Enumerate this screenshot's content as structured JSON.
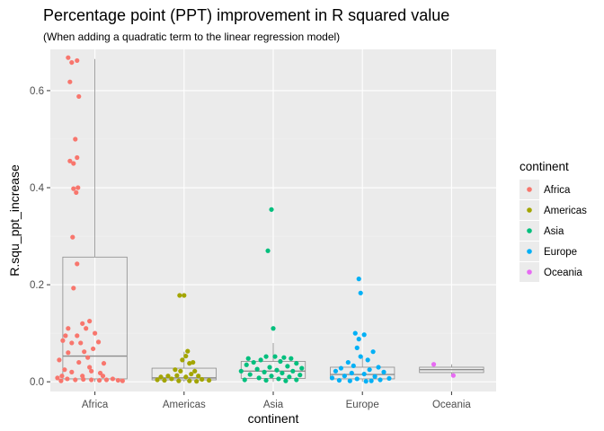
{
  "chart_data": {
    "type": "scatter",
    "title": "Percentage point (PPT) improvement in R squared value",
    "subtitle": "(When adding a quadratic term to the linear regression model)",
    "xlabel": "continent",
    "ylabel": "R.squ_ppt_increase",
    "categories": [
      "Africa",
      "Americas",
      "Asia",
      "Europe",
      "Oceania"
    ],
    "ylim": [
      -0.02,
      0.685
    ],
    "yticks": [
      0.0,
      0.2,
      0.4,
      0.6
    ],
    "ytick_labels": [
      "0.0",
      "0.2",
      "0.4",
      "0.6"
    ],
    "grid": true,
    "legend_position": "right",
    "legend_title": "continent",
    "colors": {
      "Africa": "#F8766D",
      "Americas": "#A3A500",
      "Asia": "#00BF7D",
      "Europe": "#00B0F6",
      "Oceania": "#E76BF3",
      "panel_bg": "#EBEBEB",
      "grid_major": "#FFFFFF",
      "grid_minor": "#F2F2F2",
      "box_line": "#8C8C8C",
      "tick_text": "#4D4D4D"
    },
    "boxes": [
      {
        "category": "Africa",
        "q1": 0.006,
        "median": 0.053,
        "q3": 0.257,
        "whisker_low": 0.0,
        "whisker_high": 0.665
      },
      {
        "category": "Americas",
        "q1": 0.004,
        "median": 0.008,
        "q3": 0.028,
        "whisker_low": 0.0,
        "whisker_high": 0.062
      },
      {
        "category": "Asia",
        "q1": 0.007,
        "median": 0.022,
        "q3": 0.042,
        "whisker_low": 0.0,
        "whisker_high": 0.08
      },
      {
        "category": "Europe",
        "q1": 0.006,
        "median": 0.015,
        "q3": 0.03,
        "whisker_low": 0.0,
        "whisker_high": 0.052
      },
      {
        "category": "Oceania",
        "q1": 0.019,
        "median": 0.025,
        "q3": 0.03,
        "whisker_low": 0.013,
        "whisker_high": 0.036
      }
    ],
    "series": [
      {
        "name": "Africa",
        "category": "Africa",
        "points": [
          {
            "jitter": -0.3,
            "y": 0.668
          },
          {
            "jitter": -0.26,
            "y": 0.658
          },
          {
            "jitter": -0.2,
            "y": 0.662
          },
          {
            "jitter": -0.28,
            "y": 0.618
          },
          {
            "jitter": -0.18,
            "y": 0.588
          },
          {
            "jitter": -0.22,
            "y": 0.5
          },
          {
            "jitter": -0.2,
            "y": 0.462
          },
          {
            "jitter": -0.28,
            "y": 0.455
          },
          {
            "jitter": -0.24,
            "y": 0.45
          },
          {
            "jitter": -0.24,
            "y": 0.398
          },
          {
            "jitter": -0.19,
            "y": 0.4
          },
          {
            "jitter": -0.21,
            "y": 0.39
          },
          {
            "jitter": -0.25,
            "y": 0.298
          },
          {
            "jitter": -0.2,
            "y": 0.243
          },
          {
            "jitter": -0.24,
            "y": 0.193
          },
          {
            "jitter": -0.14,
            "y": 0.12
          },
          {
            "jitter": -0.06,
            "y": 0.125
          },
          {
            "jitter": -0.1,
            "y": 0.11
          },
          {
            "jitter": -0.3,
            "y": 0.11
          },
          {
            "jitter": -0.33,
            "y": 0.095
          },
          {
            "jitter": -0.2,
            "y": 0.095
          },
          {
            "jitter": -0.26,
            "y": 0.08
          },
          {
            "jitter": -0.16,
            "y": 0.08
          },
          {
            "jitter": 0.0,
            "y": 0.1
          },
          {
            "jitter": 0.04,
            "y": 0.082
          },
          {
            "jitter": -0.36,
            "y": 0.085
          },
          {
            "jitter": -0.02,
            "y": 0.068
          },
          {
            "jitter": -0.12,
            "y": 0.062
          },
          {
            "jitter": -0.3,
            "y": 0.06
          },
          {
            "jitter": -0.08,
            "y": 0.05
          },
          {
            "jitter": -0.4,
            "y": 0.045
          },
          {
            "jitter": -0.18,
            "y": 0.04
          },
          {
            "jitter": 0.1,
            "y": 0.038
          },
          {
            "jitter": -0.06,
            "y": 0.03
          },
          {
            "jitter": -0.34,
            "y": 0.025
          },
          {
            "jitter": -0.04,
            "y": 0.022
          },
          {
            "jitter": -0.26,
            "y": 0.02
          },
          {
            "jitter": 0.06,
            "y": 0.018
          },
          {
            "jitter": -0.14,
            "y": 0.012
          },
          {
            "jitter": -0.37,
            "y": 0.012
          },
          {
            "jitter": -0.42,
            "y": 0.008
          },
          {
            "jitter": -0.31,
            "y": 0.006
          },
          {
            "jitter": -0.22,
            "y": 0.004
          },
          {
            "jitter": -0.13,
            "y": 0.005
          },
          {
            "jitter": -0.04,
            "y": 0.004
          },
          {
            "jitter": 0.05,
            "y": 0.003
          },
          {
            "jitter": 0.13,
            "y": 0.004
          },
          {
            "jitter": 0.2,
            "y": 0.006
          },
          {
            "jitter": 0.26,
            "y": 0.003
          },
          {
            "jitter": 0.31,
            "y": 0.002
          },
          {
            "jitter": -0.38,
            "y": 0.002
          },
          {
            "jitter": 0.09,
            "y": 0.012
          }
        ]
      },
      {
        "name": "Americas",
        "category": "Americas",
        "points": [
          {
            "jitter": -0.05,
            "y": 0.178
          },
          {
            "jitter": 0.0,
            "y": 0.178
          },
          {
            "jitter": 0.04,
            "y": 0.063
          },
          {
            "jitter": 0.02,
            "y": 0.053
          },
          {
            "jitter": -0.02,
            "y": 0.045
          },
          {
            "jitter": 0.1,
            "y": 0.04
          },
          {
            "jitter": 0.06,
            "y": 0.038
          },
          {
            "jitter": -0.1,
            "y": 0.025
          },
          {
            "jitter": -0.04,
            "y": 0.022
          },
          {
            "jitter": 0.12,
            "y": 0.022
          },
          {
            "jitter": 0.08,
            "y": 0.016
          },
          {
            "jitter": -0.08,
            "y": 0.013
          },
          {
            "jitter": 0.16,
            "y": 0.012
          },
          {
            "jitter": -0.18,
            "y": 0.012
          },
          {
            "jitter": -0.26,
            "y": 0.01
          },
          {
            "jitter": 0.02,
            "y": 0.01
          },
          {
            "jitter": -0.14,
            "y": 0.006
          },
          {
            "jitter": 0.2,
            "y": 0.005
          },
          {
            "jitter": -0.3,
            "y": 0.004
          },
          {
            "jitter": 0.28,
            "y": 0.003
          },
          {
            "jitter": -0.22,
            "y": 0.003
          },
          {
            "jitter": 0.06,
            "y": 0.002
          },
          {
            "jitter": -0.06,
            "y": 0.002
          },
          {
            "jitter": 0.14,
            "y": 0.001
          }
        ]
      },
      {
        "name": "Asia",
        "category": "Asia",
        "points": [
          {
            "jitter": -0.02,
            "y": 0.355
          },
          {
            "jitter": -0.06,
            "y": 0.27
          },
          {
            "jitter": 0.0,
            "y": 0.11
          },
          {
            "jitter": -0.28,
            "y": 0.048
          },
          {
            "jitter": -0.08,
            "y": 0.052
          },
          {
            "jitter": 0.02,
            "y": 0.052
          },
          {
            "jitter": 0.12,
            "y": 0.05
          },
          {
            "jitter": 0.2,
            "y": 0.048
          },
          {
            "jitter": -0.14,
            "y": 0.045
          },
          {
            "jitter": 0.08,
            "y": 0.042
          },
          {
            "jitter": -0.22,
            "y": 0.04
          },
          {
            "jitter": 0.26,
            "y": 0.038
          },
          {
            "jitter": -0.3,
            "y": 0.035
          },
          {
            "jitter": 0.16,
            "y": 0.032
          },
          {
            "jitter": -0.04,
            "y": 0.03
          },
          {
            "jitter": 0.32,
            "y": 0.028
          },
          {
            "jitter": -0.18,
            "y": 0.026
          },
          {
            "jitter": 0.04,
            "y": 0.024
          },
          {
            "jitter": -0.36,
            "y": 0.022
          },
          {
            "jitter": 0.22,
            "y": 0.022
          },
          {
            "jitter": -0.1,
            "y": 0.02
          },
          {
            "jitter": 0.1,
            "y": 0.018
          },
          {
            "jitter": -0.26,
            "y": 0.015
          },
          {
            "jitter": 0.3,
            "y": 0.014
          },
          {
            "jitter": -0.02,
            "y": 0.012
          },
          {
            "jitter": 0.18,
            "y": 0.01
          },
          {
            "jitter": -0.16,
            "y": 0.008
          },
          {
            "jitter": 0.06,
            "y": 0.006
          },
          {
            "jitter": -0.32,
            "y": 0.004
          },
          {
            "jitter": 0.26,
            "y": 0.004
          },
          {
            "jitter": -0.08,
            "y": 0.003
          },
          {
            "jitter": 0.14,
            "y": 0.002
          }
        ]
      },
      {
        "name": "Europe",
        "category": "Europe",
        "points": [
          {
            "jitter": -0.04,
            "y": 0.212
          },
          {
            "jitter": -0.02,
            "y": 0.183
          },
          {
            "jitter": -0.08,
            "y": 0.1
          },
          {
            "jitter": 0.02,
            "y": 0.097
          },
          {
            "jitter": -0.04,
            "y": 0.088
          },
          {
            "jitter": -0.06,
            "y": 0.07
          },
          {
            "jitter": 0.12,
            "y": 0.062
          },
          {
            "jitter": -0.02,
            "y": 0.052
          },
          {
            "jitter": 0.06,
            "y": 0.045
          },
          {
            "jitter": -0.16,
            "y": 0.04
          },
          {
            "jitter": -0.1,
            "y": 0.033
          },
          {
            "jitter": 0.18,
            "y": 0.03
          },
          {
            "jitter": -0.24,
            "y": 0.028
          },
          {
            "jitter": 0.08,
            "y": 0.025
          },
          {
            "jitter": -0.3,
            "y": 0.022
          },
          {
            "jitter": 0.24,
            "y": 0.02
          },
          {
            "jitter": -0.12,
            "y": 0.018
          },
          {
            "jitter": 0.02,
            "y": 0.016
          },
          {
            "jitter": -0.2,
            "y": 0.012
          },
          {
            "jitter": 0.14,
            "y": 0.011
          },
          {
            "jitter": -0.34,
            "y": 0.008
          },
          {
            "jitter": 0.3,
            "y": 0.007
          },
          {
            "jitter": -0.06,
            "y": 0.006
          },
          {
            "jitter": 0.2,
            "y": 0.004
          },
          {
            "jitter": -0.26,
            "y": 0.003
          },
          {
            "jitter": 0.1,
            "y": 0.002
          },
          {
            "jitter": -0.14,
            "y": 0.002
          },
          {
            "jitter": 0.04,
            "y": 0.001
          }
        ]
      },
      {
        "name": "Oceania",
        "category": "Oceania",
        "points": [
          {
            "jitter": -0.2,
            "y": 0.036
          },
          {
            "jitter": 0.02,
            "y": 0.013
          }
        ]
      }
    ]
  }
}
